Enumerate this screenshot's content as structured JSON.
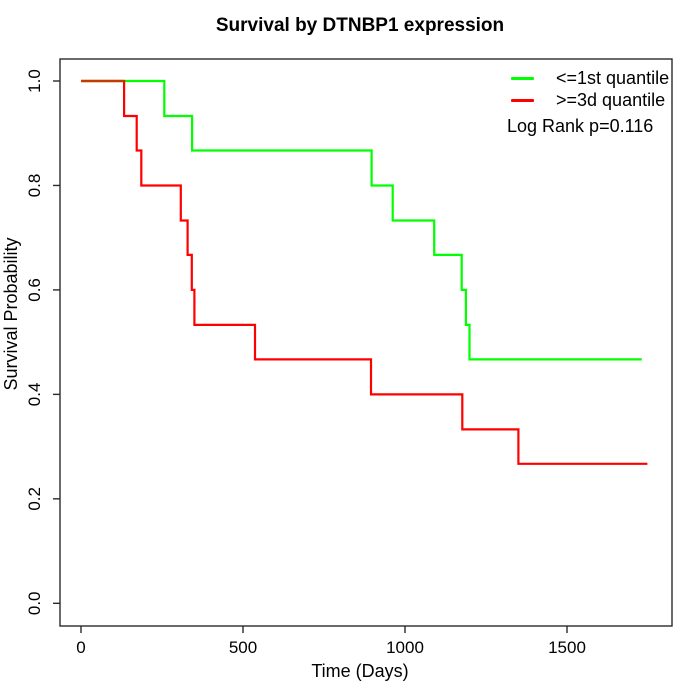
{
  "chart_data": {
    "type": "line",
    "subtype": "kaplan-meier-step",
    "title": "Survival by DTNBP1 expression",
    "xlabel": "Time (Days)",
    "ylabel": "Survival Probability",
    "xlim": [
      0,
      1830
    ],
    "ylim": [
      0.0,
      1.0
    ],
    "grid": false,
    "legend_position": "top-right-inside",
    "xticks": [
      {
        "v": 0,
        "label": "0"
      },
      {
        "v": 500,
        "label": "500"
      },
      {
        "v": 1000,
        "label": "1000"
      },
      {
        "v": 1500,
        "label": "1500"
      }
    ],
    "yticks": [
      {
        "v": 0.0,
        "label": "0.0"
      },
      {
        "v": 0.2,
        "label": "0.2"
      },
      {
        "v": 0.4,
        "label": "0.4"
      },
      {
        "v": 0.6,
        "label": "0.6"
      },
      {
        "v": 0.8,
        "label": "0.8"
      },
      {
        "v": 1.0,
        "label": "1.0"
      }
    ],
    "legend": {
      "entries": [
        {
          "label": "<=1st quantile",
          "color": "#00ff00"
        },
        {
          "label": ">=3d quantile",
          "color": "#ff0000"
        }
      ],
      "stat_note": "Log Rank p=0.116"
    },
    "series": [
      {
        "name": "<=1st quantile",
        "color": "#00ff00",
        "points": [
          [
            0,
            1.0
          ],
          [
            257,
            1.0
          ],
          [
            257,
            0.933
          ],
          [
            343,
            0.933
          ],
          [
            343,
            0.867
          ],
          [
            897,
            0.867
          ],
          [
            897,
            0.8
          ],
          [
            962,
            0.8
          ],
          [
            962,
            0.733
          ],
          [
            1090,
            0.733
          ],
          [
            1090,
            0.667
          ],
          [
            1175,
            0.667
          ],
          [
            1175,
            0.6
          ],
          [
            1188,
            0.6
          ],
          [
            1188,
            0.533
          ],
          [
            1199,
            0.533
          ],
          [
            1199,
            0.467
          ],
          [
            1731,
            0.467
          ]
        ]
      },
      {
        "name": ">=3d quantile",
        "color": "#ff0000",
        "points": [
          [
            0,
            1.0
          ],
          [
            133,
            1.0
          ],
          [
            133,
            0.933
          ],
          [
            172,
            0.933
          ],
          [
            172,
            0.867
          ],
          [
            186,
            0.867
          ],
          [
            186,
            0.8
          ],
          [
            308,
            0.8
          ],
          [
            308,
            0.733
          ],
          [
            329,
            0.733
          ],
          [
            329,
            0.667
          ],
          [
            342,
            0.667
          ],
          [
            342,
            0.6
          ],
          [
            350,
            0.6
          ],
          [
            350,
            0.533
          ],
          [
            537,
            0.533
          ],
          [
            537,
            0.467
          ],
          [
            895,
            0.467
          ],
          [
            895,
            0.4
          ],
          [
            1177,
            0.4
          ],
          [
            1177,
            0.333
          ],
          [
            1350,
            0.333
          ],
          [
            1350,
            0.267
          ],
          [
            1748,
            0.267
          ]
        ]
      }
    ],
    "overlap_segment": {
      "color": "#c43a00",
      "x_from": 0,
      "x_to": 133,
      "y": 1.0
    },
    "axis_color": "#2a2a2a"
  }
}
